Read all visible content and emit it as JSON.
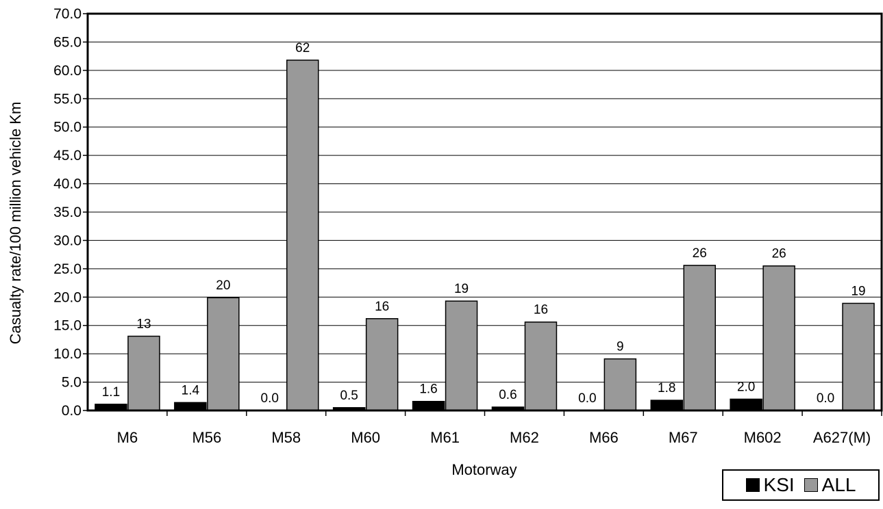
{
  "chart_data": {
    "type": "bar",
    "categories": [
      "M6",
      "M56",
      "M58",
      "M60",
      "M61",
      "M62",
      "M66",
      "M67",
      "M602",
      "A627(M)"
    ],
    "series": [
      {
        "name": "KSI",
        "values": [
          1.1,
          1.4,
          0.0,
          0.5,
          1.6,
          0.6,
          0.0,
          1.8,
          2.0,
          0.0
        ],
        "labels": [
          "1.1",
          "1.4",
          "0.0",
          "0.5",
          "1.6",
          "0.6",
          "0.0",
          "1.8",
          "2.0",
          "0.0"
        ],
        "color": "#000000"
      },
      {
        "name": "ALL",
        "values": [
          13.1,
          19.9,
          61.8,
          16.2,
          19.3,
          15.6,
          9.1,
          25.6,
          25.5,
          18.9
        ],
        "labels": [
          "13",
          "20",
          "62",
          "16",
          "19",
          "16",
          "9",
          "26",
          "26",
          "19"
        ],
        "color": "#999999"
      }
    ],
    "xlabel": "Motorway",
    "ylabel": "Casualty rate/100 million vehicle Km",
    "ylim": [
      0,
      70
    ],
    "yticks": [
      "0.0",
      "5.0",
      "10.0",
      "15.0",
      "20.0",
      "25.0",
      "30.0",
      "35.0",
      "40.0",
      "45.0",
      "50.0",
      "55.0",
      "60.0",
      "65.0",
      "70.0"
    ],
    "grid": true,
    "legend_position": "bottom-right"
  }
}
